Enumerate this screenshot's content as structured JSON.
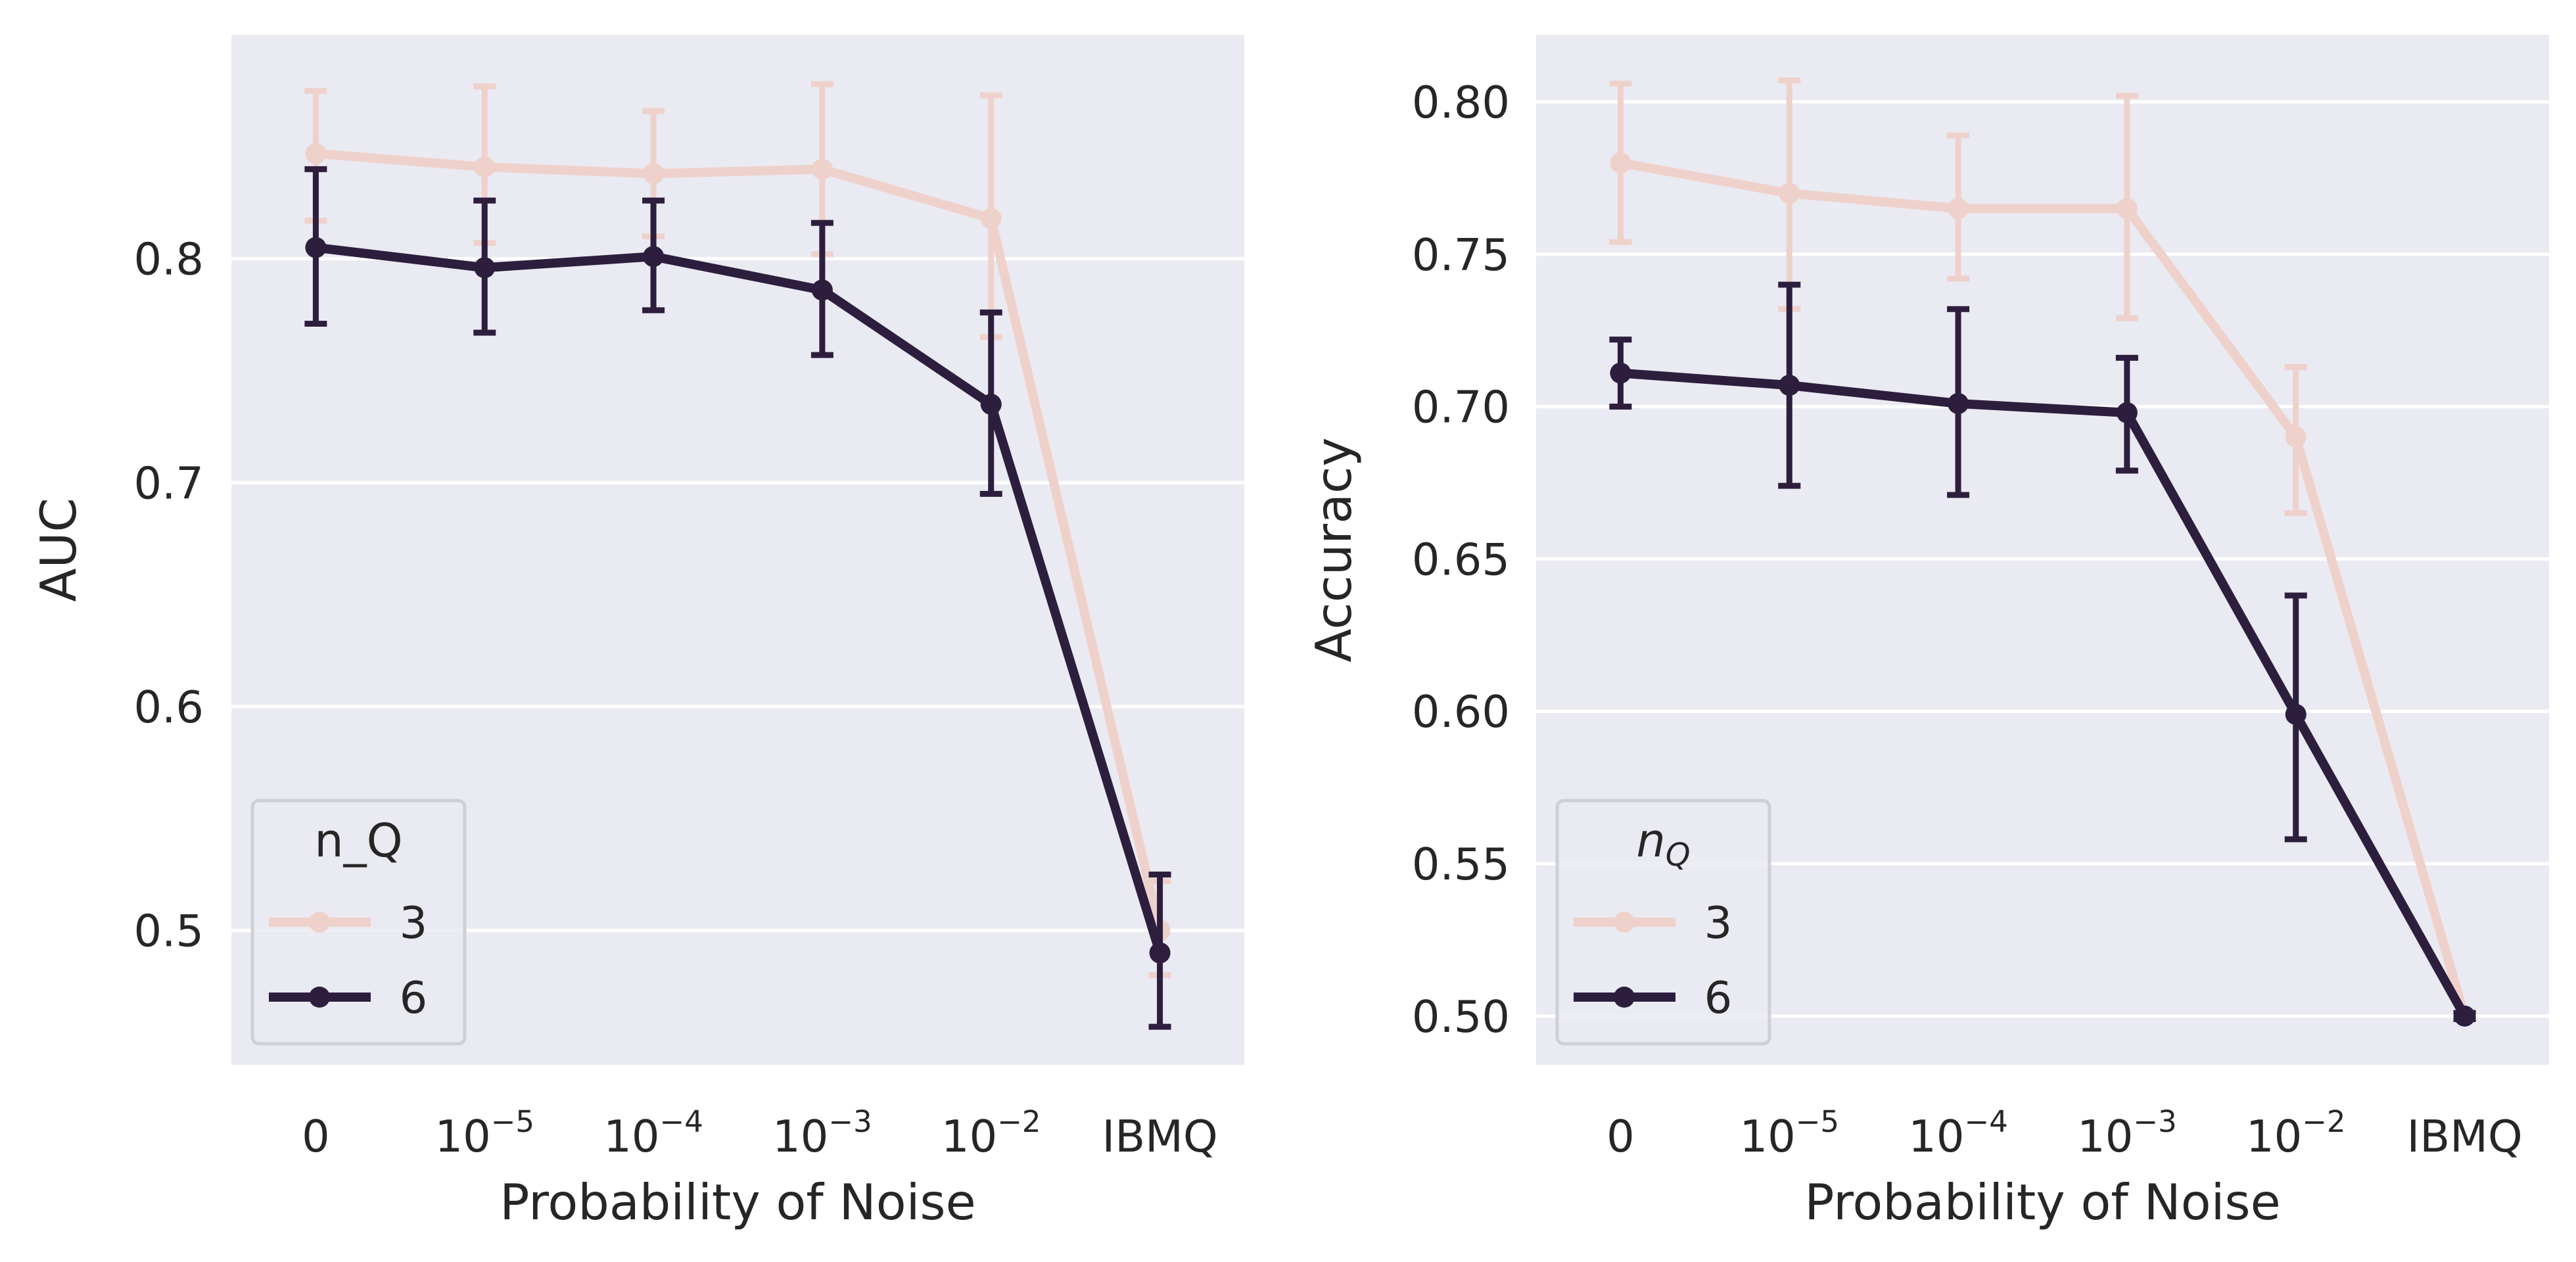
{
  "colors": {
    "background": "#eaeaf2",
    "grid": "#ffffff",
    "series_3": "#efd1cb",
    "series_6": "#2d1e3e",
    "text": "#262626"
  },
  "chart_data": [
    {
      "type": "line",
      "subplot": "left",
      "categories": [
        "0",
        "10^-5",
        "10^-4",
        "10^-3",
        "10^-2",
        "IBMQ"
      ],
      "xlabel": "Probability of Noise",
      "ylabel": "AUC",
      "ylim": [
        0.44,
        0.9
      ],
      "yticks": [
        0.5,
        0.6,
        0.7,
        0.8
      ],
      "ytick_labels": [
        "0.5",
        "0.6",
        "0.7",
        "0.8"
      ],
      "grid": "horizontal",
      "legend": {
        "title": "n_Q",
        "placement": "lower-left",
        "entries": [
          "3",
          "6"
        ]
      },
      "series": [
        {
          "name": "3",
          "values": [
            0.847,
            0.841,
            0.838,
            0.84,
            0.818,
            0.5
          ],
          "err_low": [
            0.817,
            0.807,
            0.81,
            0.802,
            0.765,
            0.48
          ],
          "err_high": [
            0.875,
            0.877,
            0.866,
            0.878,
            0.873,
            0.522
          ]
        },
        {
          "name": "6",
          "values": [
            0.805,
            0.796,
            0.801,
            0.786,
            0.735,
            0.49
          ],
          "err_low": [
            0.771,
            0.767,
            0.777,
            0.757,
            0.695,
            0.457
          ],
          "err_high": [
            0.84,
            0.826,
            0.826,
            0.816,
            0.776,
            0.525
          ]
        }
      ]
    },
    {
      "type": "line",
      "subplot": "right",
      "categories": [
        "0",
        "10^-5",
        "10^-4",
        "10^-3",
        "10^-2",
        "IBMQ"
      ],
      "xlabel": "Probability of Noise",
      "ylabel": "Accuracy",
      "ylim": [
        0.484,
        0.822
      ],
      "yticks": [
        0.5,
        0.55,
        0.6,
        0.65,
        0.7,
        0.75,
        0.8
      ],
      "ytick_labels": [
        "0.50",
        "0.55",
        "0.60",
        "0.65",
        "0.70",
        "0.75",
        "0.80"
      ],
      "grid": "horizontal",
      "legend": {
        "title": "n_Q",
        "title_style": "subscript-italic",
        "placement": "lower-left",
        "entries": [
          "3",
          "6"
        ]
      },
      "series": [
        {
          "name": "3",
          "values": [
            0.78,
            0.77,
            0.765,
            0.765,
            0.69,
            0.5
          ],
          "err_low": [
            0.754,
            0.732,
            0.742,
            0.729,
            0.665,
            0.499
          ],
          "err_high": [
            0.806,
            0.807,
            0.789,
            0.802,
            0.713,
            0.501
          ]
        },
        {
          "name": "6",
          "values": [
            0.711,
            0.707,
            0.701,
            0.698,
            0.599,
            0.5
          ],
          "err_low": [
            0.7,
            0.674,
            0.671,
            0.679,
            0.558,
            0.499
          ],
          "err_high": [
            0.722,
            0.74,
            0.732,
            0.716,
            0.638,
            0.501
          ]
        }
      ]
    }
  ]
}
